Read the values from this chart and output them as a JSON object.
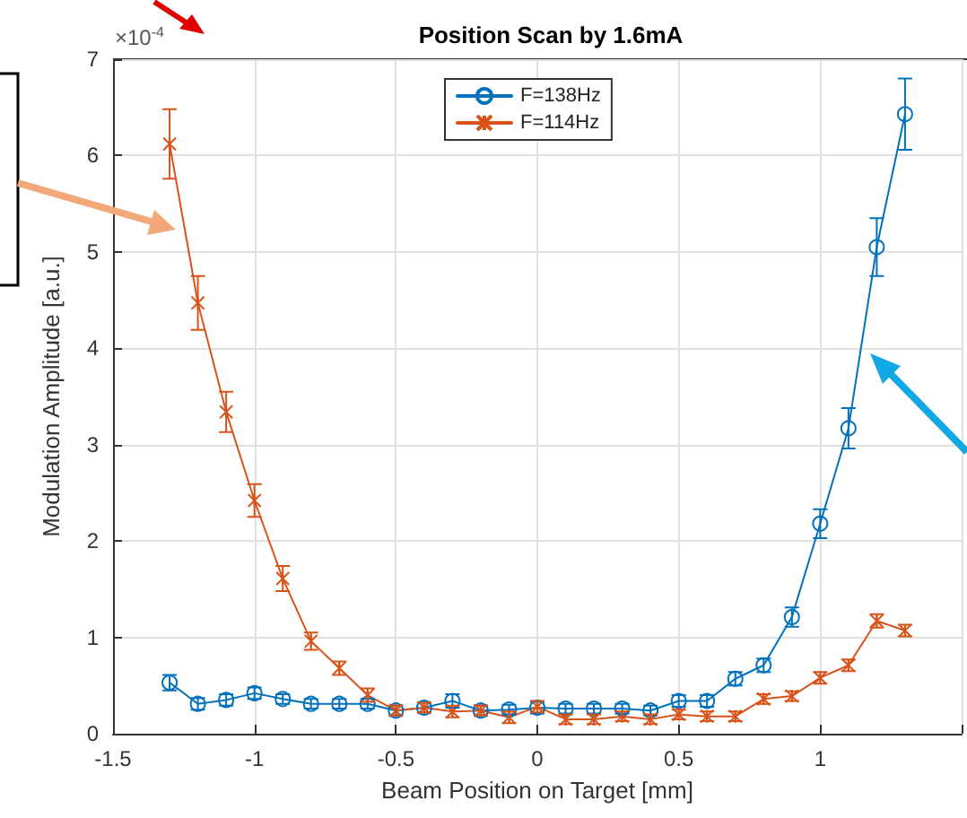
{
  "chart_data": {
    "type": "line",
    "title": "Position Scan by 1.6mA",
    "xlabel": "Beam Position on Target [mm]",
    "ylabel": "Modulation Amplitude [a.u.]",
    "annotations": [
      "×10$^{-4}$"
    ],
    "x": [
      -1.3,
      -1.2,
      -1.1,
      -1.0,
      -0.9,
      -0.8,
      -0.7,
      -0.6,
      -0.5,
      -0.4,
      -0.3,
      -0.2,
      -0.1,
      0,
      0.1,
      0.2,
      0.3,
      0.4,
      0.5,
      0.6,
      0.7,
      0.8,
      0.9,
      1.0,
      1.1,
      1.2,
      1.3
    ],
    "series": [
      {
        "name": "F=138Hz",
        "color": "#0072bd",
        "marker": "circle",
        "values": [
          0.53,
          0.31,
          0.35,
          0.42,
          0.36,
          0.31,
          0.31,
          0.31,
          0.24,
          0.27,
          0.34,
          0.24,
          0.25,
          0.27,
          0.26,
          0.26,
          0.26,
          0.24,
          0.34,
          0.34,
          0.57,
          0.71,
          1.21,
          2.18,
          3.17,
          5.05,
          6.43
        ],
        "errors": [
          0.08,
          0.06,
          0.06,
          0.06,
          0.05,
          0.05,
          0.05,
          0.05,
          0.05,
          0.05,
          0.07,
          0.05,
          0.05,
          0.06,
          0.05,
          0.05,
          0.05,
          0.05,
          0.06,
          0.06,
          0.07,
          0.07,
          0.1,
          0.15,
          0.21,
          0.3,
          0.37
        ]
      },
      {
        "name": "F=114Hz",
        "color": "#d95319",
        "marker": "cross",
        "values": [
          6.12,
          4.47,
          3.34,
          2.42,
          1.61,
          0.96,
          0.68,
          0.4,
          0.24,
          0.27,
          0.23,
          0.24,
          0.17,
          0.28,
          0.15,
          0.15,
          0.18,
          0.15,
          0.2,
          0.18,
          0.18,
          0.36,
          0.39,
          0.58,
          0.71,
          1.17,
          1.07
        ],
        "errors": [
          0.36,
          0.28,
          0.21,
          0.17,
          0.13,
          0.09,
          0.07,
          0.07,
          0.05,
          0.05,
          0.06,
          0.05,
          0.06,
          0.06,
          0.05,
          0.05,
          0.05,
          0.05,
          0.05,
          0.05,
          0.05,
          0.05,
          0.05,
          0.06,
          0.06,
          0.07,
          0.06
        ]
      }
    ],
    "xlim": [
      -1.5,
      1.5
    ],
    "xticks": [
      -1.5,
      -1,
      -0.5,
      0,
      0.5,
      1,
      {
        "value": 1.5,
        "label": null
      }
    ],
    "ylim": [
      0,
      7
    ],
    "yticks": [
      0,
      1,
      2,
      3,
      4,
      5,
      6,
      7
    ],
    "grid": true,
    "legend": "top",
    "line_style": "solid"
  }
}
